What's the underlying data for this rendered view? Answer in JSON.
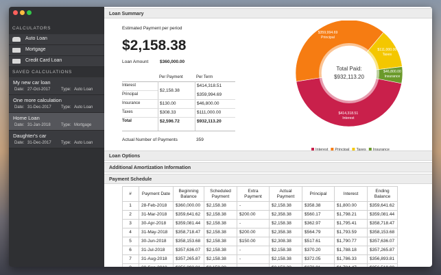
{
  "sidebar": {
    "calculators_heading": "CALCULATORS",
    "calculators": [
      "Auto Loan",
      "Mortgage",
      "Credit Card Loan"
    ],
    "saved_heading": "SAVED CALCULATIONS",
    "date_label": "Date:",
    "type_label": "Type:",
    "saved": [
      {
        "name": "My new car loan",
        "date": "27-Oct-2017",
        "type": "Auto Loan"
      },
      {
        "name": "One more calculation",
        "date": "31-Dec-2017",
        "type": "Auto Loan"
      },
      {
        "name": "Home Loan",
        "date": "31-Jan-2018",
        "type": "Mortgage"
      },
      {
        "name": "Daughter's car",
        "date": "31-Dec-2017",
        "type": "Auto Loan"
      }
    ]
  },
  "summary": {
    "heading": "Loan Summary",
    "estimated_label": "Estimated Payment per period",
    "estimated_value": "$2,158.38",
    "loan_amount_label": "Loan Amount",
    "loan_amount_value": "$360,000.00",
    "table_headers": [
      "Per Payment",
      "Per Term"
    ],
    "rows": [
      [
        "Interest",
        "$414,318.51"
      ],
      [
        "Principal",
        "$359,994.69"
      ],
      [
        "Insurance",
        "$46,800.00"
      ],
      [
        "Taxes",
        "$111,000.00"
      ],
      [
        "Total",
        "$932,113.20"
      ]
    ],
    "per_payment": [
      "$2,158.38",
      "$130.00",
      "$308.33",
      "$2,596.72"
    ],
    "num_payments_label": "Actual Number of Payments",
    "num_payments_value": "359"
  },
  "chart_data": {
    "type": "pie",
    "title": "Total Paid:",
    "total_label": "$932,113.20",
    "categories": [
      "Interest",
      "Principal",
      "Taxes",
      "Insurance"
    ],
    "values": [
      414318.51,
      359994.69,
      111000,
      46800
    ],
    "value_labels": [
      "$414,318.51",
      "$359,994.69",
      "$111,000.00",
      "$46,800.00"
    ],
    "colors": [
      "#c9204b",
      "#f67c12",
      "#f4c700",
      "#6b9a2a"
    ],
    "legend": "bottom"
  },
  "sections": [
    "Loan Options",
    "Additional Amortization Information",
    "Payment Schedule"
  ],
  "schedule": {
    "headers": [
      "#",
      "Payment Date",
      "Beginning Balance",
      "Scheduled Payment",
      "Extra Payment",
      "Actual Payment",
      "Principal",
      "Interest",
      "Ending Balance"
    ],
    "rows": [
      [
        "1",
        "28-Feb-2018",
        "$360,000.00",
        "$2,158.38",
        "-",
        "$2,158.38",
        "$358.38",
        "$1,800.00",
        "$359,641.62"
      ],
      [
        "2",
        "31-Mar-2018",
        "$359,641.62",
        "$2,158.38",
        "$200.00",
        "$2,358.38",
        "$560.17",
        "$1,798.21",
        "$359,081.44"
      ],
      [
        "3",
        "30-Apr-2018",
        "$359,081.44",
        "$2,158.38",
        "-",
        "$2,158.38",
        "$362.97",
        "$1,795.41",
        "$358,718.47"
      ],
      [
        "4",
        "31-May-2018",
        "$358,718.47",
        "$2,158.38",
        "$200.00",
        "$2,358.38",
        "$564.79",
        "$1,793.59",
        "$358,153.68"
      ],
      [
        "5",
        "30-Jun-2018",
        "$358,153.68",
        "$2,158.38",
        "$150.00",
        "$2,308.38",
        "$517.61",
        "$1,790.77",
        "$357,636.07"
      ],
      [
        "6",
        "31-Jul-2018",
        "$357,636.07",
        "$2,158.38",
        "-",
        "$2,158.38",
        "$370.20",
        "$1,788.18",
        "$357,265.87"
      ],
      [
        "7",
        "31-Aug-2018",
        "$357,265.87",
        "$2,158.38",
        "-",
        "$2,158.38",
        "$372.05",
        "$1,786.33",
        "$356,893.81"
      ],
      [
        "8",
        "30-Sep-2018",
        "$356,893.81",
        "$2,158.38",
        "-",
        "$2,158.38",
        "$373.91",
        "$1,784.47",
        "$356,519.90"
      ]
    ]
  }
}
